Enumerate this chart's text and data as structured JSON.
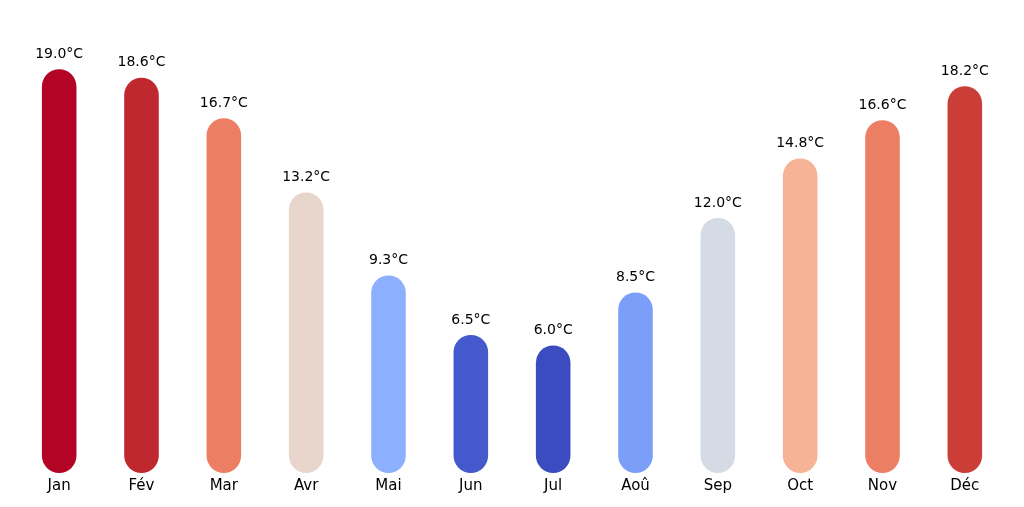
{
  "chart_data": {
    "type": "bar",
    "categories": [
      "Jan",
      "Fév",
      "Mar",
      "Avr",
      "Mai",
      "Jun",
      "Jul",
      "Aoû",
      "Sep",
      "Oct",
      "Nov",
      "Déc"
    ],
    "values": [
      19.0,
      18.6,
      16.7,
      13.2,
      9.3,
      6.5,
      6.0,
      8.5,
      12.0,
      14.8,
      16.6,
      18.2
    ],
    "colors": [
      "#b40426",
      "#c0282f",
      "#ec7f63",
      "#e8d6cc",
      "#8db0fe",
      "#445acc",
      "#3b4cc0",
      "#7b9ff9",
      "#d5dbe5",
      "#f6b396",
      "#ec7f63",
      "#cb3e38"
    ],
    "value_labels": [
      "19.0°C",
      "18.6°C",
      "16.7°C",
      "13.2°C",
      "9.3°C",
      "6.5°C",
      "6.0°C",
      "8.5°C",
      "12.0°C",
      "14.8°C",
      "16.6°C",
      "18.2°C"
    ],
    "grid": false,
    "legend": false,
    "tick_labels": "x"
  }
}
